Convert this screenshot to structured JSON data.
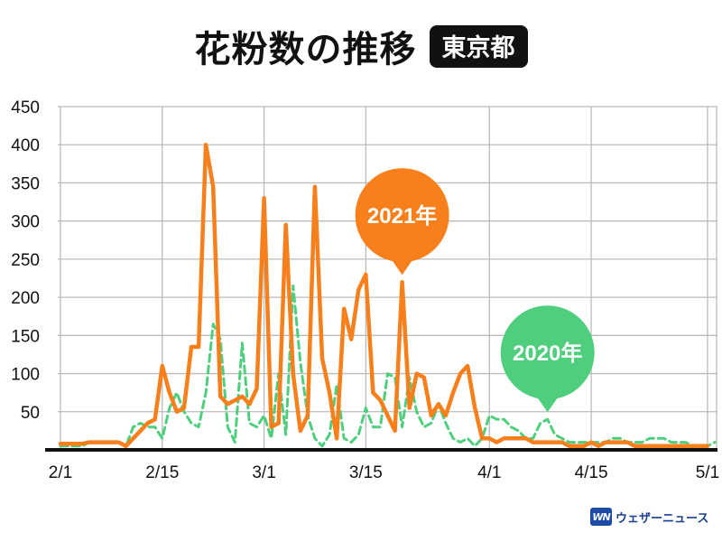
{
  "title": "花粉数の推移",
  "badge": "東京都",
  "brand": {
    "mark_text": "WN",
    "name": "ウェザーニュース"
  },
  "colors": {
    "series_2021": "#f77f1c",
    "series_2020": "#4fcf7d",
    "axis": "#111111",
    "grid": "#bbbbbb"
  },
  "chart_data": {
    "type": "line",
    "y_ticks": [
      50,
      100,
      150,
      200,
      250,
      300,
      350,
      400,
      450
    ],
    "ylim": [
      0,
      450
    ],
    "x_ticks": [
      {
        "label": "2/1",
        "day": 0
      },
      {
        "label": "2/15",
        "day": 14
      },
      {
        "label": "3/1",
        "day": 28
      },
      {
        "label": "3/15",
        "day": 42
      },
      {
        "label": "4/1",
        "day": 59
      },
      {
        "label": "4/15",
        "day": 73
      },
      {
        "label": "5/1",
        "day": 89
      }
    ],
    "xlim": [
      0,
      90
    ],
    "series": [
      {
        "name": "2021年",
        "style": "solid",
        "color": "#f77f1c",
        "values": [
          8,
          8,
          8,
          8,
          10,
          10,
          10,
          10,
          10,
          5,
          15,
          25,
          35,
          40,
          110,
          75,
          50,
          55,
          135,
          135,
          400,
          345,
          70,
          60,
          65,
          70,
          60,
          80,
          330,
          30,
          35,
          295,
          100,
          25,
          45,
          345,
          120,
          75,
          15,
          185,
          145,
          210,
          230,
          75,
          65,
          45,
          25,
          220,
          55,
          100,
          95,
          45,
          60,
          45,
          75,
          100,
          110,
          55,
          15,
          15,
          10,
          15,
          15,
          15,
          15,
          10,
          10,
          10,
          10,
          10,
          5,
          5,
          5,
          10,
          5,
          10,
          10,
          10,
          10,
          5,
          5,
          5,
          5,
          5,
          5,
          5,
          5,
          5,
          5,
          5
        ]
      },
      {
        "name": "2020年",
        "style": "dashed",
        "color": "#4fcf7d",
        "values": [
          5,
          5,
          5,
          5,
          10,
          10,
          10,
          10,
          10,
          5,
          30,
          35,
          30,
          30,
          15,
          55,
          75,
          50,
          35,
          30,
          75,
          165,
          145,
          30,
          10,
          140,
          35,
          30,
          45,
          15,
          100,
          20,
          215,
          115,
          45,
          15,
          5,
          20,
          85,
          15,
          10,
          20,
          55,
          30,
          30,
          100,
          95,
          30,
          95,
          50,
          30,
          35,
          60,
          35,
          15,
          10,
          15,
          5,
          15,
          45,
          40,
          40,
          30,
          25,
          15,
          15,
          35,
          40,
          20,
          15,
          10,
          10,
          10,
          10,
          10,
          10,
          15,
          15,
          10,
          10,
          10,
          15,
          15,
          15,
          10,
          10,
          10,
          5,
          5,
          5,
          10
        ]
      }
    ],
    "annotations": [
      {
        "text": "2021年",
        "series": "2021年",
        "day": 47
      },
      {
        "text": "2020年",
        "series": "2020年",
        "day": 67
      }
    ]
  }
}
